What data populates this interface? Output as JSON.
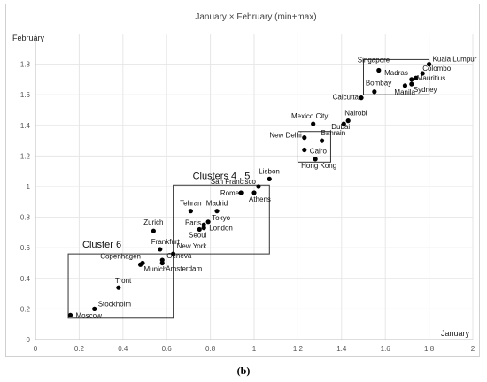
{
  "caption": "(b)",
  "chart_data": {
    "type": "scatter",
    "title": "January × February (min+max)",
    "xlabel": "January",
    "ylabel": "February",
    "xlim": [
      0,
      2
    ],
    "ylim": [
      0,
      2
    ],
    "x_ticks": [
      "0",
      "0.2",
      "0.4",
      "0.6",
      "0.8",
      "1",
      "1.2",
      "1.4",
      "1.6",
      "1.8",
      "2"
    ],
    "y_ticks": [
      "0",
      "0.2",
      "0.4",
      "0.6",
      "0.8",
      "1",
      "1.2",
      "1.4",
      "1.6",
      "1.8"
    ],
    "grid": true,
    "points": [
      {
        "label": "Moscow",
        "x": 0.16,
        "y": 0.16
      },
      {
        "label": "Stockholm",
        "x": 0.27,
        "y": 0.2
      },
      {
        "label": "Tront",
        "x": 0.38,
        "y": 0.34
      },
      {
        "label": "Munich",
        "x": 0.48,
        "y": 0.49
      },
      {
        "label": "Copenhagen",
        "x": 0.49,
        "y": 0.5
      },
      {
        "label": "Amsterdam",
        "x": 0.58,
        "y": 0.5
      },
      {
        "label": "Geneva",
        "x": 0.58,
        "y": 0.52
      },
      {
        "label": "Zurich",
        "x": 0.54,
        "y": 0.71
      },
      {
        "label": "Frankfurt",
        "x": 0.57,
        "y": 0.59
      },
      {
        "label": "New York",
        "x": 0.63,
        "y": 0.56
      },
      {
        "label": "Seoul",
        "x": 0.75,
        "y": 0.72
      },
      {
        "label": "London",
        "x": 0.77,
        "y": 0.73
      },
      {
        "label": "Paris",
        "x": 0.77,
        "y": 0.75
      },
      {
        "label": "Tokyo",
        "x": 0.79,
        "y": 0.77
      },
      {
        "label": "Tehran",
        "x": 0.71,
        "y": 0.84
      },
      {
        "label": "Madrid",
        "x": 0.83,
        "y": 0.84
      },
      {
        "label": "Rome",
        "x": 0.94,
        "y": 0.96
      },
      {
        "label": "Athens",
        "x": 1.0,
        "y": 0.96
      },
      {
        "label": "San Francisco",
        "x": 1.02,
        "y": 1.0
      },
      {
        "label": "Lisbon",
        "x": 1.07,
        "y": 1.05
      },
      {
        "label": "Mexico City",
        "x": 1.27,
        "y": 1.41
      },
      {
        "label": "New Delhi",
        "x": 1.23,
        "y": 1.32
      },
      {
        "label": "Cairo",
        "x": 1.23,
        "y": 1.24
      },
      {
        "label": "Bahrain",
        "x": 1.31,
        "y": 1.3
      },
      {
        "label": "Dubai",
        "x": 1.41,
        "y": 1.41
      },
      {
        "label": "Nairobi",
        "x": 1.43,
        "y": 1.43
      },
      {
        "label": "Hong Kong",
        "x": 1.28,
        "y": 1.18
      },
      {
        "label": "Calcutta",
        "x": 1.49,
        "y": 1.58
      },
      {
        "label": "Bombay",
        "x": 1.55,
        "y": 1.62
      },
      {
        "label": "Singapore",
        "x": 1.57,
        "y": 1.76
      },
      {
        "label": "Manila",
        "x": 1.69,
        "y": 1.66
      },
      {
        "label": "Madras",
        "x": 1.72,
        "y": 1.7
      },
      {
        "label": "Mauritius",
        "x": 1.74,
        "y": 1.71
      },
      {
        "label": "Sydney",
        "x": 1.72,
        "y": 1.67
      },
      {
        "label": "Colombo",
        "x": 1.77,
        "y": 1.74
      },
      {
        "label": "Kuala Lumpur",
        "x": 1.8,
        "y": 1.8
      }
    ],
    "clusters": [
      {
        "label": "Cluster 6",
        "x_range": [
          0.15,
          0.63
        ],
        "y_range": [
          0.14,
          0.56
        ]
      },
      {
        "label": "Clusters 4 , 5",
        "x_range": [
          0.63,
          1.07
        ],
        "y_range": [
          0.56,
          1.01
        ]
      },
      {
        "label": "",
        "x_range": [
          1.2,
          1.35
        ],
        "y_range": [
          1.16,
          1.36
        ]
      },
      {
        "label": "",
        "x_range": [
          1.5,
          1.8
        ],
        "y_range": [
          1.6,
          1.83
        ]
      }
    ]
  }
}
